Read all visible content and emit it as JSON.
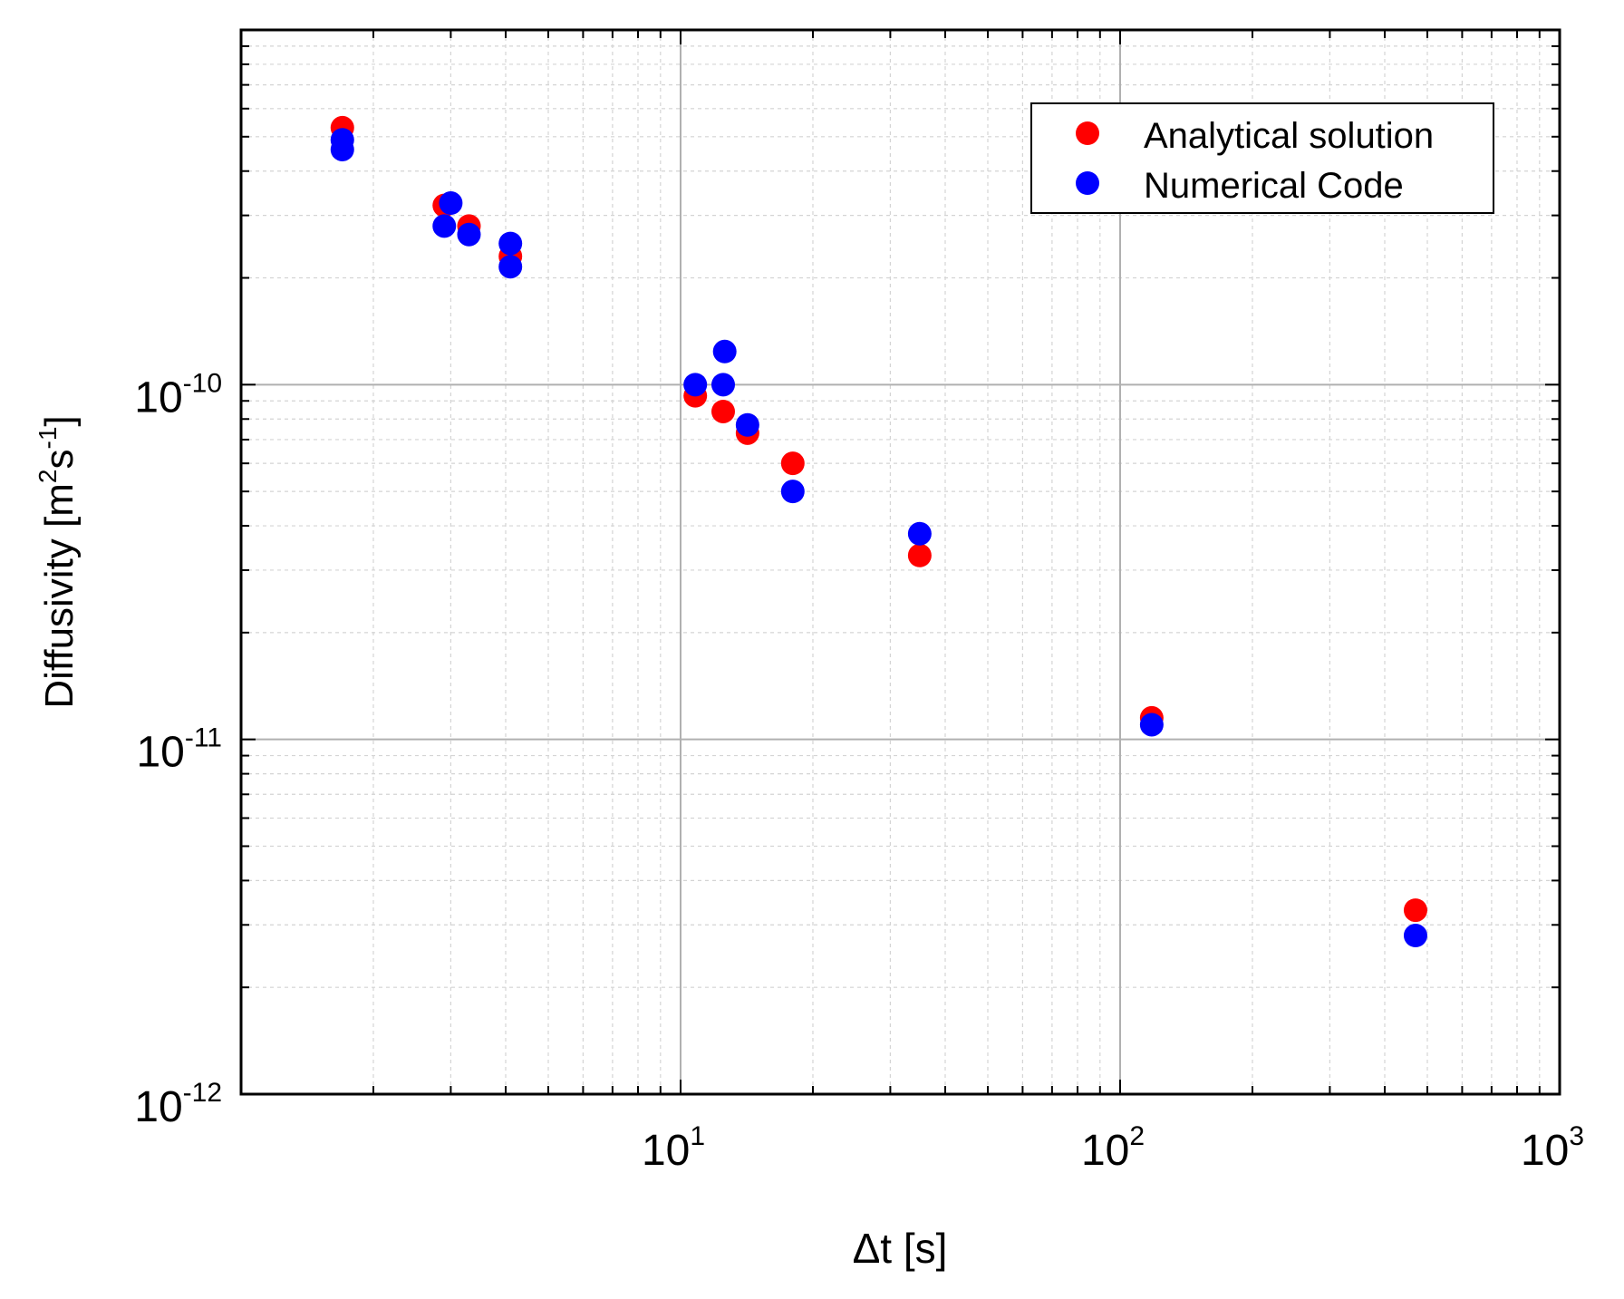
{
  "chart_data": {
    "type": "scatter",
    "title": "",
    "xlabel": "Δt [s]",
    "ylabel": "Diffusivity [m2s-1]",
    "ylabel_parts": {
      "main": "Diffusivity [m",
      "sup1": "2",
      "mid": "s",
      "sup2": "-1",
      "end": "]"
    },
    "x_scale": "log",
    "y_scale": "log",
    "xlim": [
      1,
      1000
    ],
    "ylim": [
      1e-12,
      1e-09
    ],
    "grid": true,
    "legend_position": "top-right",
    "x_ticks": [
      {
        "value": 10,
        "base": "10",
        "exp": "1"
      },
      {
        "value": 100,
        "base": "10",
        "exp": "2"
      },
      {
        "value": 1000,
        "base": "10",
        "exp": "3"
      }
    ],
    "y_ticks": [
      {
        "value": 1e-12,
        "base": "10",
        "exp": "-12"
      },
      {
        "value": 1e-11,
        "base": "10",
        "exp": "-11"
      },
      {
        "value": 1e-10,
        "base": "10",
        "exp": "-10"
      }
    ],
    "series": [
      {
        "name": "Analytical solution",
        "color": "#ff0000",
        "points": [
          [
            1.7,
            5.3e-10
          ],
          [
            2.9,
            3.2e-10
          ],
          [
            3.3,
            2.8e-10
          ],
          [
            4.1,
            2.3e-10
          ],
          [
            10.8,
            9.3e-11
          ],
          [
            12.5,
            8.4e-11
          ],
          [
            14.2,
            7.3e-11
          ],
          [
            18.0,
            6e-11
          ],
          [
            35.0,
            3.3e-11
          ],
          [
            118,
            1.15e-11
          ],
          [
            470,
            3.3e-12
          ]
        ]
      },
      {
        "name": "Numerical Code",
        "color": "#0000ff",
        "points": [
          [
            1.7,
            4.9e-10
          ],
          [
            1.7,
            4.6e-10
          ],
          [
            2.9,
            2.8e-10
          ],
          [
            3.0,
            3.25e-10
          ],
          [
            3.3,
            2.65e-10
          ],
          [
            4.1,
            2.5e-10
          ],
          [
            4.1,
            2.15e-10
          ],
          [
            10.8,
            1e-10
          ],
          [
            12.5,
            1e-10
          ],
          [
            12.6,
            1.24e-10
          ],
          [
            14.2,
            7.7e-11
          ],
          [
            18.0,
            5e-11
          ],
          [
            35.0,
            3.8e-11
          ],
          [
            118,
            1.1e-11
          ],
          [
            470,
            2.8e-12
          ]
        ]
      }
    ]
  }
}
